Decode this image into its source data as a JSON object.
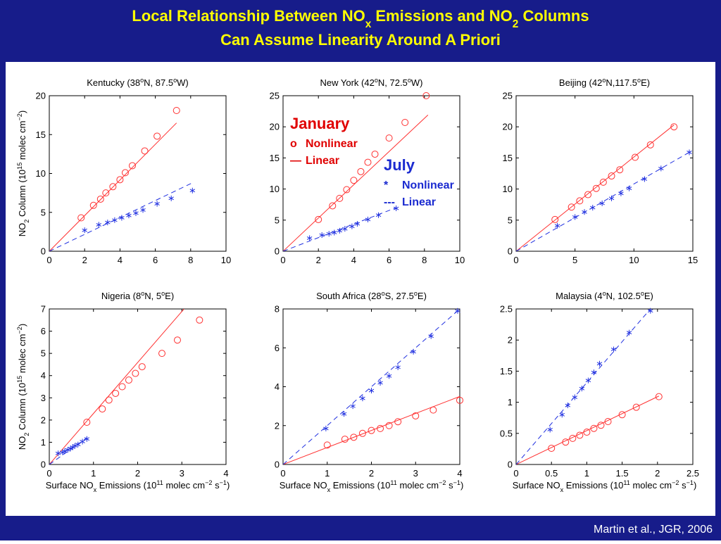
{
  "header": {
    "title_line1": [
      {
        "text": "Local Relationship Between NO"
      },
      {
        "text": "x",
        "script": "sub"
      },
      {
        "text": " Emissions and NO"
      },
      {
        "text": "2",
        "script": "sub"
      },
      {
        "text": " Columns"
      }
    ],
    "title_line2": "Can Assume Linearity Around A Priori"
  },
  "legend": [
    {
      "title": "January",
      "color": "#e00000",
      "entries": [
        {
          "symbol": "o",
          "label": "Nonlinear"
        },
        {
          "symbol": "—",
          "label": "Linear"
        }
      ]
    },
    {
      "title": "July",
      "color": "#1a2ad0",
      "entries": [
        {
          "symbol": "*",
          "label": "Nonlinear"
        },
        {
          "symbol": "---",
          "label": "Linear"
        }
      ]
    }
  ],
  "footer": "Martin et al., JGR, 2006",
  "chart_data": [
    {
      "type": "scatter",
      "title": [
        {
          "text": "Kentucky (38"
        },
        {
          "text": "o",
          "script": "sup"
        },
        {
          "text": "N, 87.5"
        },
        {
          "text": "o",
          "script": "sup"
        },
        {
          "text": "W)"
        }
      ],
      "y_label": [
        {
          "text": "NO"
        },
        {
          "text": "2",
          "script": "sub"
        },
        {
          "text": " Column (10"
        },
        {
          "text": "15",
          "script": "sup"
        },
        {
          "text": " molec cm"
        },
        {
          "text": "−2",
          "script": "sup"
        },
        {
          "text": ")"
        }
      ],
      "xlim": [
        0,
        10
      ],
      "xticks": [
        0,
        2,
        4,
        6,
        8,
        10
      ],
      "ylim": [
        0,
        20
      ],
      "yticks": [
        0,
        5,
        10,
        15,
        20
      ],
      "series": [
        {
          "color": "#ff3030",
          "marker": "circle",
          "x": [
            1.8,
            2.5,
            2.9,
            3.2,
            3.6,
            4.0,
            4.3,
            4.7,
            5.4,
            6.1,
            7.2
          ],
          "values": [
            4.3,
            5.9,
            6.7,
            7.5,
            8.3,
            9.2,
            10.1,
            11.0,
            12.9,
            14.8,
            18.1
          ]
        },
        {
          "color": "#2030e0",
          "marker": "star",
          "x": [
            2.0,
            2.8,
            3.3,
            3.7,
            4.1,
            4.5,
            4.9,
            5.3,
            6.1,
            6.9,
            8.1
          ],
          "values": [
            2.7,
            3.4,
            3.7,
            4.0,
            4.3,
            4.6,
            4.9,
            5.3,
            6.1,
            6.8,
            7.8
          ]
        }
      ],
      "fits": [
        {
          "color": "#ff3030",
          "dash": false,
          "x": [
            0,
            7.2
          ],
          "values": [
            0,
            16.5
          ]
        },
        {
          "color": "#2030e0",
          "dash": true,
          "x": [
            0,
            8.1
          ],
          "values": [
            0,
            8.8
          ]
        }
      ]
    },
    {
      "type": "scatter",
      "title": [
        {
          "text": "New York (42"
        },
        {
          "text": "o",
          "script": "sup"
        },
        {
          "text": "N, 72.5"
        },
        {
          "text": "o",
          "script": "sup"
        },
        {
          "text": "W)"
        }
      ],
      "xlim": [
        0,
        10
      ],
      "xticks": [
        0,
        2,
        4,
        6,
        8,
        10
      ],
      "ylim": [
        0,
        25
      ],
      "yticks": [
        0,
        5,
        10,
        15,
        20,
        25
      ],
      "series": [
        {
          "color": "#ff3030",
          "marker": "circle",
          "x": [
            2.0,
            2.8,
            3.2,
            3.6,
            4.0,
            4.4,
            4.8,
            5.2,
            6.0,
            6.9,
            8.1
          ],
          "values": [
            5.1,
            7.3,
            8.5,
            9.9,
            11.4,
            12.8,
            14.3,
            15.6,
            18.2,
            20.7,
            25.0
          ]
        },
        {
          "color": "#2030e0",
          "marker": "star",
          "x": [
            1.5,
            2.2,
            2.6,
            2.9,
            3.2,
            3.5,
            3.9,
            4.2,
            4.8,
            5.4,
            6.4
          ],
          "values": [
            2.1,
            2.6,
            2.8,
            3.0,
            3.3,
            3.6,
            4.0,
            4.4,
            5.1,
            5.8,
            6.9
          ]
        }
      ],
      "fits": [
        {
          "color": "#ff3030",
          "dash": false,
          "x": [
            0,
            8.2
          ],
          "values": [
            0,
            21.9
          ]
        },
        {
          "color": "#2030e0",
          "dash": true,
          "x": [
            0,
            6.4
          ],
          "values": [
            0,
            7.0
          ]
        }
      ]
    },
    {
      "type": "scatter",
      "title": [
        {
          "text": "Beijing (42"
        },
        {
          "text": "o",
          "script": "sup"
        },
        {
          "text": "N,117.5"
        },
        {
          "text": "o",
          "script": "sup"
        },
        {
          "text": "E)"
        }
      ],
      "xlim": [
        0,
        15
      ],
      "xticks": [
        0,
        5,
        10,
        15
      ],
      "ylim": [
        0,
        25
      ],
      "yticks": [
        0,
        5,
        10,
        15,
        20,
        25
      ],
      "series": [
        {
          "color": "#ff3030",
          "marker": "circle",
          "x": [
            3.3,
            4.7,
            5.4,
            6.1,
            6.8,
            7.4,
            8.1,
            8.8,
            10.1,
            11.4,
            13.4
          ],
          "values": [
            5.1,
            7.1,
            8.1,
            9.1,
            10.1,
            11.1,
            12.1,
            13.1,
            15.1,
            17.1,
            20.0
          ]
        },
        {
          "color": "#2030e0",
          "marker": "star",
          "x": [
            3.5,
            5.0,
            5.8,
            6.5,
            7.3,
            8.1,
            8.9,
            9.6,
            10.9,
            12.3,
            14.7
          ],
          "values": [
            4.1,
            5.5,
            6.3,
            7.0,
            7.7,
            8.5,
            9.3,
            10.1,
            11.6,
            13.3,
            15.9
          ]
        }
      ],
      "fits": [
        {
          "color": "#ff3030",
          "dash": false,
          "x": [
            0,
            13.4
          ],
          "values": [
            0,
            20.3
          ]
        },
        {
          "color": "#2030e0",
          "dash": true,
          "x": [
            0,
            14.7
          ],
          "values": [
            0,
            15.9
          ]
        }
      ]
    },
    {
      "type": "scatter",
      "title": [
        {
          "text": "Nigeria (8"
        },
        {
          "text": "o",
          "script": "sup"
        },
        {
          "text": "N, 5"
        },
        {
          "text": "o",
          "script": "sup"
        },
        {
          "text": "E)"
        }
      ],
      "y_label": [
        {
          "text": "NO"
        },
        {
          "text": "2",
          "script": "sub"
        },
        {
          "text": " Column (10"
        },
        {
          "text": "15",
          "script": "sup"
        },
        {
          "text": " molec cm"
        },
        {
          "text": "−2",
          "script": "sup"
        },
        {
          "text": ")"
        }
      ],
      "x_label": [
        {
          "text": "Surface NO"
        },
        {
          "text": "x",
          "script": "sub"
        },
        {
          "text": " Emissions (10"
        },
        {
          "text": "11",
          "script": "sup"
        },
        {
          "text": " molec cm"
        },
        {
          "text": "−2",
          "script": "sup"
        },
        {
          "text": " s"
        },
        {
          "text": "−1",
          "script": "sup"
        },
        {
          "text": ")"
        }
      ],
      "xlim": [
        0,
        4
      ],
      "xticks": [
        0,
        1,
        2,
        3,
        4
      ],
      "ylim": [
        0,
        7
      ],
      "yticks": [
        0,
        1,
        2,
        3,
        4,
        5,
        6,
        7
      ],
      "series": [
        {
          "color": "#ff3030",
          "marker": "circle",
          "x": [
            0.85,
            1.2,
            1.35,
            1.5,
            1.65,
            1.8,
            1.95,
            2.1,
            2.55,
            2.9,
            3.4
          ],
          "values": [
            1.9,
            2.5,
            2.9,
            3.2,
            3.5,
            3.8,
            4.1,
            4.4,
            5.0,
            5.6,
            6.5
          ]
        },
        {
          "color": "#2030e0",
          "marker": "star",
          "x": [
            0.2,
            0.3,
            0.35,
            0.42,
            0.48,
            0.53,
            0.58,
            0.65,
            0.75,
            0.85
          ],
          "values": [
            0.5,
            0.55,
            0.6,
            0.66,
            0.72,
            0.78,
            0.84,
            0.9,
            1.03,
            1.15
          ]
        }
      ],
      "fits": [
        {
          "color": "#ff3030",
          "dash": false,
          "x": [
            0,
            3.05
          ],
          "values": [
            0,
            7.0
          ]
        },
        {
          "color": "#2030e0",
          "dash": true,
          "x": [
            0,
            0.85
          ],
          "values": [
            0,
            1.2
          ]
        }
      ]
    },
    {
      "type": "scatter",
      "title": [
        {
          "text": "South Africa (28"
        },
        {
          "text": "o",
          "script": "sup"
        },
        {
          "text": "S, 27.5"
        },
        {
          "text": "o",
          "script": "sup"
        },
        {
          "text": "E)"
        }
      ],
      "x_label": [
        {
          "text": "Surface NO"
        },
        {
          "text": "x",
          "script": "sub"
        },
        {
          "text": " Emissions (10"
        },
        {
          "text": "11",
          "script": "sup"
        },
        {
          "text": " molec cm"
        },
        {
          "text": "−2",
          "script": "sup"
        },
        {
          "text": " s"
        },
        {
          "text": "−1",
          "script": "sup"
        },
        {
          "text": ")"
        }
      ],
      "xlim": [
        0,
        4
      ],
      "xticks": [
        0,
        1,
        2,
        3,
        4
      ],
      "ylim": [
        0,
        8
      ],
      "yticks": [
        0,
        2,
        4,
        6,
        8
      ],
      "series": [
        {
          "color": "#ff3030",
          "marker": "circle",
          "x": [
            1.0,
            1.4,
            1.6,
            1.8,
            2.0,
            2.2,
            2.4,
            2.6,
            3.0,
            3.4,
            4.0
          ],
          "values": [
            1.0,
            1.3,
            1.4,
            1.6,
            1.75,
            1.85,
            2.0,
            2.2,
            2.5,
            2.8,
            3.3
          ]
        },
        {
          "color": "#2030e0",
          "marker": "star",
          "x": [
            0.97,
            1.38,
            1.58,
            1.8,
            2.0,
            2.2,
            2.4,
            2.6,
            2.95,
            3.35,
            3.95
          ],
          "values": [
            1.85,
            2.6,
            3.0,
            3.4,
            3.8,
            4.2,
            4.55,
            5.0,
            5.8,
            6.6,
            7.9
          ]
        }
      ],
      "fits": [
        {
          "color": "#ff3030",
          "dash": false,
          "x": [
            0,
            4
          ],
          "values": [
            0,
            3.5
          ]
        },
        {
          "color": "#2030e0",
          "dash": true,
          "x": [
            0,
            4
          ],
          "values": [
            0,
            8.0
          ]
        }
      ]
    },
    {
      "type": "scatter",
      "title": [
        {
          "text": "Malaysia (4"
        },
        {
          "text": "o",
          "script": "sup"
        },
        {
          "text": "N, 102.5"
        },
        {
          "text": "o",
          "script": "sup"
        },
        {
          "text": "E)"
        }
      ],
      "x_label": [
        {
          "text": "Surface NO"
        },
        {
          "text": "x",
          "script": "sub"
        },
        {
          "text": " Emissions (10"
        },
        {
          "text": "11",
          "script": "sup"
        },
        {
          "text": " molec cm"
        },
        {
          "text": "−2",
          "script": "sup"
        },
        {
          "text": " s"
        },
        {
          "text": "−1",
          "script": "sup"
        },
        {
          "text": ")"
        }
      ],
      "xlim": [
        0,
        2.5
      ],
      "xticks": [
        0,
        0.5,
        1,
        1.5,
        2,
        2.5
      ],
      "ylim": [
        0,
        2.5
      ],
      "yticks": [
        0,
        0.5,
        1,
        1.5,
        2,
        2.5
      ],
      "series": [
        {
          "color": "#ff3030",
          "marker": "circle",
          "x": [
            0.5,
            0.7,
            0.8,
            0.9,
            1.0,
            1.1,
            1.2,
            1.3,
            1.5,
            1.7,
            2.02
          ],
          "values": [
            0.26,
            0.36,
            0.42,
            0.47,
            0.52,
            0.58,
            0.63,
            0.69,
            0.8,
            0.92,
            1.09
          ]
        },
        {
          "color": "#2030e0",
          "marker": "star",
          "x": [
            0.48,
            0.65,
            0.73,
            0.83,
            0.93,
            1.02,
            1.1,
            1.18,
            1.38,
            1.6,
            1.9
          ],
          "values": [
            0.56,
            0.8,
            0.95,
            1.08,
            1.22,
            1.35,
            1.48,
            1.62,
            1.85,
            2.12,
            2.47
          ]
        }
      ],
      "fits": [
        {
          "color": "#ff3030",
          "dash": false,
          "x": [
            0,
            2.02
          ],
          "values": [
            0,
            1.1
          ]
        },
        {
          "color": "#2030e0",
          "dash": true,
          "x": [
            0,
            1.9
          ],
          "values": [
            0,
            2.5
          ]
        }
      ]
    }
  ]
}
